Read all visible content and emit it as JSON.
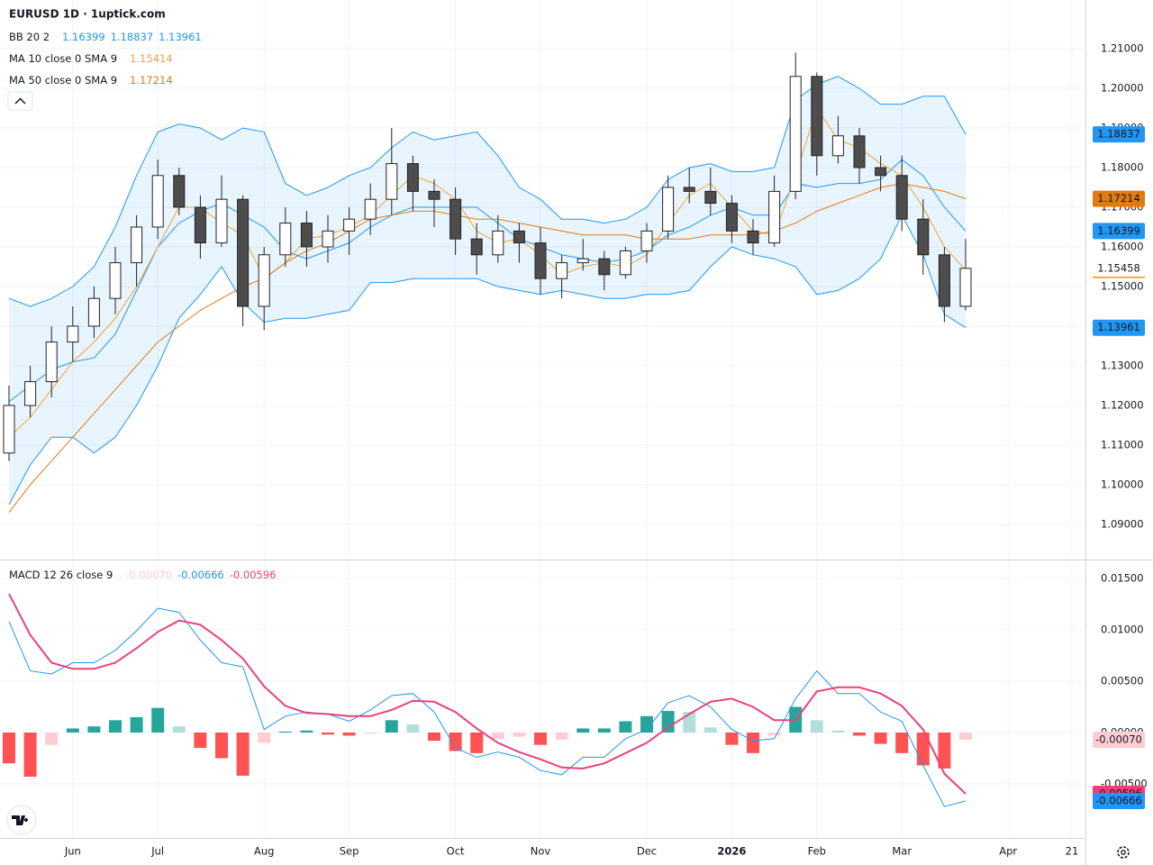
{
  "chart_data": [
    {
      "type": "candlestick",
      "title": "EURUSD 1D · 1uptick.com",
      "categories": [
        null,
        null,
        null,
        "Jun",
        null,
        null,
        null,
        "Jul",
        null,
        null,
        null,
        null,
        "Aug",
        null,
        null,
        null,
        "Sep",
        null,
        null,
        null,
        null,
        "Oct",
        null,
        null,
        null,
        "Nov",
        null,
        null,
        null,
        null,
        "Dec",
        null,
        null,
        null,
        "2026",
        null,
        null,
        null,
        "Feb",
        null,
        null,
        null,
        "Mar",
        null,
        null,
        null,
        null,
        "Apr",
        null,
        null,
        "21"
      ],
      "candles": [
        [
          1.108,
          1.125,
          1.106,
          1.12
        ],
        [
          1.12,
          1.13,
          1.117,
          1.126
        ],
        [
          1.126,
          1.14,
          1.122,
          1.136
        ],
        [
          1.136,
          1.145,
          1.131,
          1.14
        ],
        [
          1.14,
          1.15,
          1.137,
          1.147
        ],
        [
          1.147,
          1.16,
          1.143,
          1.156
        ],
        [
          1.156,
          1.168,
          1.15,
          1.165
        ],
        [
          1.165,
          1.182,
          1.162,
          1.178
        ],
        [
          1.178,
          1.18,
          1.168,
          1.17
        ],
        [
          1.17,
          1.173,
          1.157,
          1.161
        ],
        [
          1.161,
          1.178,
          1.16,
          1.172
        ],
        [
          1.172,
          1.173,
          1.14,
          1.145
        ],
        [
          1.145,
          1.16,
          1.139,
          1.158
        ],
        [
          1.158,
          1.17,
          1.155,
          1.166
        ],
        [
          1.166,
          1.169,
          1.155,
          1.16
        ],
        [
          1.16,
          1.168,
          1.156,
          1.164
        ],
        [
          1.164,
          1.17,
          1.158,
          1.167
        ],
        [
          1.167,
          1.176,
          1.163,
          1.172
        ],
        [
          1.172,
          1.19,
          1.168,
          1.181
        ],
        [
          1.181,
          1.183,
          1.169,
          1.174
        ],
        [
          1.174,
          1.177,
          1.165,
          1.172
        ],
        [
          1.172,
          1.175,
          1.158,
          1.162
        ],
        [
          1.162,
          1.166,
          1.153,
          1.158
        ],
        [
          1.158,
          1.168,
          1.156,
          1.164
        ],
        [
          1.164,
          1.166,
          1.156,
          1.161
        ],
        [
          1.161,
          1.165,
          1.148,
          1.152
        ],
        [
          1.152,
          1.158,
          1.147,
          1.156
        ],
        [
          1.156,
          1.162,
          1.154,
          1.157
        ],
        [
          1.157,
          1.159,
          1.149,
          1.153
        ],
        [
          1.153,
          1.16,
          1.152,
          1.159
        ],
        [
          1.159,
          1.166,
          1.156,
          1.164
        ],
        [
          1.164,
          1.178,
          1.162,
          1.175
        ],
        [
          1.175,
          1.18,
          1.171,
          1.174
        ],
        [
          1.174,
          1.18,
          1.168,
          1.171
        ],
        [
          1.171,
          1.173,
          1.161,
          1.164
        ],
        [
          1.164,
          1.167,
          1.158,
          1.161
        ],
        [
          1.161,
          1.178,
          1.16,
          1.174
        ],
        [
          1.174,
          1.209,
          1.172,
          1.203
        ],
        [
          1.203,
          1.204,
          1.178,
          1.183
        ],
        [
          1.183,
          1.193,
          1.181,
          1.188
        ],
        [
          1.188,
          1.19,
          1.176,
          1.18
        ],
        [
          1.18,
          1.183,
          1.174,
          1.178
        ],
        [
          1.178,
          1.183,
          1.164,
          1.167
        ],
        [
          1.167,
          1.172,
          1.153,
          1.158
        ],
        [
          1.158,
          1.16,
          1.141,
          1.145
        ],
        [
          1.145,
          1.162,
          1.144,
          1.15458
        ],
        null,
        null,
        null,
        null,
        null
      ],
      "up_color": "#ffffff",
      "down_color": "#4d4d4d",
      "wick_color": "#222222",
      "series": [
        {
          "name": "BB 20 2",
          "color": "#2196f3",
          "fill": "rgba(33,150,243,0.1)",
          "lines": [
            {
              "values": [
                1.121,
                1.125,
                1.129,
                1.131,
                1.132,
                1.138,
                1.149,
                1.16,
                1.166,
                1.169,
                1.171,
                1.168,
                1.165,
                1.159,
                1.157,
                1.159,
                1.161,
                1.165,
                1.168,
                1.17,
                1.17,
                1.17,
                1.17,
                1.166,
                1.162,
                1.16,
                1.158,
                1.157,
                1.156,
                1.157,
                1.159,
                1.163,
                1.165,
                1.168,
                1.17,
                1.168,
                1.168,
                1.176,
                1.175,
                1.176,
                1.176,
                1.177,
                1.182,
                1.178,
                1.17,
                1.16399,
                null,
                null,
                null,
                null,
                null
              ]
            },
            {
              "values": [
                1.147,
                1.145,
                1.147,
                1.15,
                1.155,
                1.165,
                1.178,
                1.189,
                1.191,
                1.19,
                1.187,
                1.19,
                1.189,
                1.176,
                1.173,
                1.175,
                1.178,
                1.18,
                1.185,
                1.189,
                1.187,
                1.188,
                1.189,
                1.183,
                1.175,
                1.172,
                1.167,
                1.167,
                1.166,
                1.167,
                1.17,
                1.177,
                1.18,
                1.181,
                1.179,
                1.179,
                1.18,
                1.197,
                1.201,
                1.203,
                1.2,
                1.196,
                1.196,
                1.198,
                1.198,
                1.18837,
                null,
                null,
                null,
                null,
                null
              ]
            },
            {
              "values": [
                1.095,
                1.105,
                1.112,
                1.112,
                1.108,
                1.112,
                1.12,
                1.13,
                1.142,
                1.148,
                1.155,
                1.146,
                1.141,
                1.142,
                1.142,
                1.143,
                1.144,
                1.151,
                1.151,
                1.152,
                1.152,
                1.152,
                1.152,
                1.15,
                1.149,
                1.148,
                1.149,
                1.148,
                1.147,
                1.147,
                1.148,
                1.148,
                1.149,
                1.155,
                1.16,
                1.158,
                1.157,
                1.155,
                1.148,
                1.149,
                1.152,
                1.157,
                1.168,
                1.158,
                1.143,
                1.13961,
                null,
                null,
                null,
                null,
                null
              ]
            }
          ]
        },
        {
          "name": "MA 10 close 0 SMA 9",
          "color": "#f0a530",
          "lines": [
            {
              "values": [
                1.112,
                1.117,
                1.124,
                1.131,
                1.136,
                1.142,
                1.15,
                1.16,
                1.17,
                1.17,
                1.166,
                1.163,
                1.152,
                1.156,
                1.162,
                1.163,
                1.165,
                1.168,
                1.173,
                1.178,
                1.176,
                1.172,
                1.164,
                1.161,
                1.162,
                1.158,
                1.153,
                1.155,
                1.156,
                1.155,
                1.158,
                1.166,
                1.173,
                1.176,
                1.17,
                1.164,
                1.163,
                1.178,
                1.195,
                1.187,
                1.185,
                1.181,
                1.178,
                1.17,
                1.16,
                1.15414,
                null,
                null,
                null,
                null,
                null
              ]
            }
          ]
        },
        {
          "name": "MA 50 close 0 SMA 9",
          "color": "#e07b12",
          "lines": [
            {
              "values": [
                1.093,
                1.1,
                1.106,
                1.112,
                1.118,
                1.124,
                1.13,
                1.136,
                1.14,
                1.144,
                1.147,
                1.15,
                1.152,
                1.156,
                1.159,
                1.161,
                1.164,
                1.167,
                1.168,
                1.169,
                1.169,
                1.168,
                1.167,
                1.167,
                1.166,
                1.165,
                1.164,
                1.163,
                1.163,
                1.163,
                1.162,
                1.162,
                1.162,
                1.163,
                1.163,
                1.163,
                1.164,
                1.166,
                1.169,
                1.171,
                1.173,
                1.175,
                1.176,
                1.175,
                1.174,
                1.17214,
                null,
                null,
                null,
                null,
                null
              ]
            }
          ]
        }
      ],
      "ylim": [
        1.08136,
        1.22227
      ],
      "yticks": [
        {
          "value": 1.21,
          "label": "1.21000"
        },
        {
          "value": 1.2,
          "label": "1.20000"
        },
        {
          "value": 1.19,
          "label": "1.19000"
        },
        {
          "value": 1.18,
          "label": "1.18000"
        },
        {
          "value": 1.17,
          "label": "1.17000"
        },
        {
          "value": 1.16,
          "label": "1.16000"
        },
        {
          "value": 1.15,
          "label": "1.15000"
        },
        {
          "value": 1.14,
          "label": "1.14000"
        },
        {
          "value": 1.13,
          "label": "1.13000"
        },
        {
          "value": 1.12,
          "label": "1.12000"
        },
        {
          "value": 1.11,
          "label": "1.11000"
        },
        {
          "value": 1.1,
          "label": "1.10000"
        },
        {
          "value": 1.09,
          "label": "1.09000"
        }
      ],
      "grid": true
    },
    {
      "type": "macd",
      "label": "MACD 12 26 close 9",
      "histogram": {
        "colors": [
          "#26a69a",
          "#b2dfdb",
          "#ff5252",
          "#ffcdd2"
        ],
        "last_label": "-0.00070",
        "values": [
          -0.003,
          -0.0043,
          -0.0012,
          0.0004,
          0.0006,
          0.0012,
          0.0015,
          0.0024,
          0.0006,
          -0.0015,
          -0.0025,
          -0.0042,
          -0.001,
          0.0001,
          0.0002,
          -0.0002,
          -0.0003,
          -0.0001,
          0.0012,
          0.0008,
          -0.0008,
          -0.0018,
          -0.002,
          -0.0006,
          -0.0004,
          -0.0012,
          -0.0007,
          0.0004,
          0.0004,
          0.0011,
          0.0016,
          0.0021,
          0.002,
          0.0005,
          -0.0012,
          -0.002,
          -0.0003,
          0.0025,
          0.0012,
          0.0002,
          -0.0003,
          -0.0011,
          -0.002,
          -0.0032,
          -0.0035,
          -0.0007,
          null,
          null,
          null,
          null,
          null
        ]
      },
      "macd": {
        "color": "#2196f3",
        "values": [
          0.0108,
          0.006,
          0.0057,
          0.0068,
          0.0068,
          0.008,
          0.0099,
          0.0121,
          0.0117,
          0.009,
          0.0068,
          0.0064,
          0.0003,
          0.0016,
          0.002,
          0.0018,
          0.0011,
          0.0022,
          0.0036,
          0.0038,
          0.002,
          -0.0015,
          -0.0024,
          -0.0019,
          -0.0024,
          -0.0037,
          -0.0041,
          -0.0024,
          -0.0024,
          -0.0006,
          0.0003,
          0.0029,
          0.0036,
          0.0025,
          0.0003,
          -0.0008,
          -0.0006,
          0.0033,
          0.006,
          0.0038,
          0.0038,
          0.002,
          0.0011,
          -0.0032,
          -0.0072,
          -0.00666,
          null,
          null,
          null,
          null,
          null
        ]
      },
      "signal": {
        "color": "#ec407a",
        "values": [
          0.0135,
          0.0095,
          0.0068,
          0.0062,
          0.0062,
          0.0068,
          0.0082,
          0.0098,
          0.0109,
          0.0105,
          0.009,
          0.0072,
          0.0045,
          0.0026,
          0.0019,
          0.0018,
          0.0016,
          0.0016,
          0.0022,
          0.0031,
          0.003,
          0.002,
          0.0004,
          -0.001,
          -0.0019,
          -0.0026,
          -0.0034,
          -0.0035,
          -0.003,
          -0.002,
          -0.001,
          0.0005,
          0.0018,
          0.003,
          0.0033,
          0.0025,
          0.0012,
          0.0012,
          0.004,
          0.0044,
          0.0044,
          0.0038,
          0.0026,
          0.0003,
          -0.004,
          -0.00596,
          null,
          null,
          null,
          null,
          null
        ]
      },
      "ylim": [
        -0.01026,
        0.01675
      ],
      "yticks": [
        {
          "value": 0.015,
          "label": "0.01500"
        },
        {
          "value": 0.01,
          "label": "0.01000"
        },
        {
          "value": 0.005,
          "label": "0.00500"
        },
        {
          "value": 0,
          "label": "0.00000"
        },
        {
          "value": -0.005,
          "label": "-0.00500"
        }
      ],
      "grid": true
    }
  ]
}
